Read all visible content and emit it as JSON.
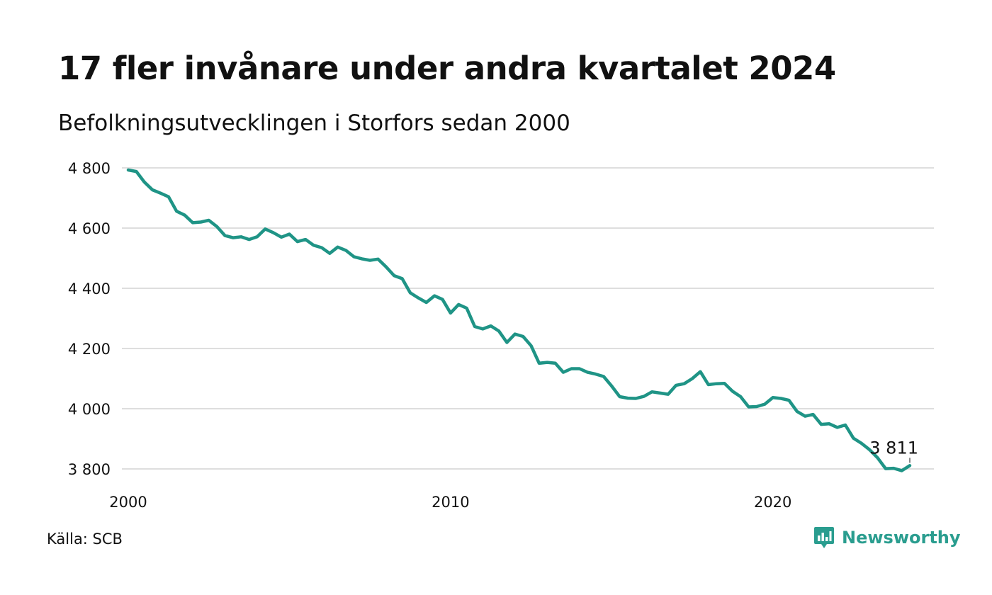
{
  "header": {
    "title": "17 fler invånare under andra kvartalet 2024",
    "subtitle": "Befolkningsutvecklingen i Storfors sedan 2000"
  },
  "footer": {
    "source": "Källa: SCB",
    "brand_name": "Newsworthy",
    "brand_icon": "bar-chart-speech-bubble-icon"
  },
  "colors": {
    "line": "#1f9486",
    "grid": "#dedede",
    "brand": "#2a9d8f",
    "text": "#111111"
  },
  "chart_data": {
    "type": "line",
    "title": "17 fler invånare under andra kvartalet 2024",
    "subtitle": "Befolkningsutvecklingen i Storfors sedan 2000",
    "xlabel": "",
    "ylabel": "",
    "xlim": [
      2000.0,
      2024.25
    ],
    "ylim": [
      3800,
      4800
    ],
    "grid": true,
    "legend": "none",
    "x_ticks": [
      {
        "value": 2000,
        "label": "2000"
      },
      {
        "value": 2010,
        "label": "2010"
      },
      {
        "value": 2020,
        "label": "2020"
      }
    ],
    "y_ticks": [
      {
        "value": 3800,
        "label": "3 800"
      },
      {
        "value": 4000,
        "label": "4 000"
      },
      {
        "value": 4200,
        "label": "4 200"
      },
      {
        "value": 4400,
        "label": "4 400"
      },
      {
        "value": 4600,
        "label": "4 600"
      },
      {
        "value": 4800,
        "label": "4 800"
      }
    ],
    "series": [
      {
        "values": [
          [
            2000.0,
            4793
          ],
          [
            2000.25,
            4788
          ],
          [
            2000.5,
            4753
          ],
          [
            2000.75,
            4727
          ],
          [
            2001.0,
            4716
          ],
          [
            2001.25,
            4704
          ],
          [
            2001.5,
            4656
          ],
          [
            2001.75,
            4643
          ],
          [
            2002.0,
            4618
          ],
          [
            2002.25,
            4620
          ],
          [
            2002.5,
            4626
          ],
          [
            2002.75,
            4605
          ],
          [
            2003.0,
            4575
          ],
          [
            2003.25,
            4568
          ],
          [
            2003.5,
            4571
          ],
          [
            2003.75,
            4562
          ],
          [
            2004.0,
            4571
          ],
          [
            2004.25,
            4597
          ],
          [
            2004.5,
            4585
          ],
          [
            2004.75,
            4570
          ],
          [
            2005.0,
            4580
          ],
          [
            2005.25,
            4555
          ],
          [
            2005.5,
            4562
          ],
          [
            2005.75,
            4543
          ],
          [
            2006.0,
            4535
          ],
          [
            2006.25,
            4516
          ],
          [
            2006.5,
            4537
          ],
          [
            2006.75,
            4526
          ],
          [
            2007.0,
            4505
          ],
          [
            2007.25,
            4498
          ],
          [
            2007.5,
            4493
          ],
          [
            2007.75,
            4497
          ],
          [
            2008.0,
            4471
          ],
          [
            2008.25,
            4442
          ],
          [
            2008.5,
            4432
          ],
          [
            2008.75,
            4385
          ],
          [
            2009.0,
            4368
          ],
          [
            2009.25,
            4353
          ],
          [
            2009.5,
            4375
          ],
          [
            2009.75,
            4363
          ],
          [
            2010.0,
            4318
          ],
          [
            2010.25,
            4346
          ],
          [
            2010.5,
            4334
          ],
          [
            2010.75,
            4273
          ],
          [
            2011.0,
            4265
          ],
          [
            2011.25,
            4275
          ],
          [
            2011.5,
            4258
          ],
          [
            2011.75,
            4220
          ],
          [
            2012.0,
            4248
          ],
          [
            2012.25,
            4240
          ],
          [
            2012.5,
            4209
          ],
          [
            2012.75,
            4151
          ],
          [
            2013.0,
            4154
          ],
          [
            2013.25,
            4151
          ],
          [
            2013.5,
            4121
          ],
          [
            2013.75,
            4133
          ],
          [
            2014.0,
            4133
          ],
          [
            2014.25,
            4121
          ],
          [
            2014.5,
            4115
          ],
          [
            2014.75,
            4107
          ],
          [
            2015.0,
            4075
          ],
          [
            2015.25,
            4040
          ],
          [
            2015.5,
            4035
          ],
          [
            2015.75,
            4034
          ],
          [
            2016.0,
            4041
          ],
          [
            2016.25,
            4056
          ],
          [
            2016.5,
            4052
          ],
          [
            2016.75,
            4048
          ],
          [
            2017.0,
            4078
          ],
          [
            2017.25,
            4083
          ],
          [
            2017.5,
            4100
          ],
          [
            2017.75,
            4123
          ],
          [
            2018.0,
            4080
          ],
          [
            2018.25,
            4083
          ],
          [
            2018.5,
            4084
          ],
          [
            2018.75,
            4058
          ],
          [
            2019.0,
            4040
          ],
          [
            2019.25,
            4006
          ],
          [
            2019.5,
            4007
          ],
          [
            2019.75,
            4015
          ],
          [
            2020.0,
            4037
          ],
          [
            2020.25,
            4034
          ],
          [
            2020.5,
            4028
          ],
          [
            2020.75,
            3991
          ],
          [
            2021.0,
            3975
          ],
          [
            2021.25,
            3981
          ],
          [
            2021.5,
            3948
          ],
          [
            2021.75,
            3950
          ],
          [
            2022.0,
            3938
          ],
          [
            2022.25,
            3946
          ],
          [
            2022.5,
            3902
          ],
          [
            2022.75,
            3885
          ],
          [
            2023.0,
            3864
          ],
          [
            2023.25,
            3837
          ],
          [
            2023.5,
            3801
          ],
          [
            2023.75,
            3802
          ],
          [
            2024.0,
            3794
          ],
          [
            2024.25,
            3811
          ]
        ]
      }
    ],
    "annotations": [
      {
        "x": 2024.25,
        "y": 3811,
        "label": "3 811"
      }
    ]
  }
}
